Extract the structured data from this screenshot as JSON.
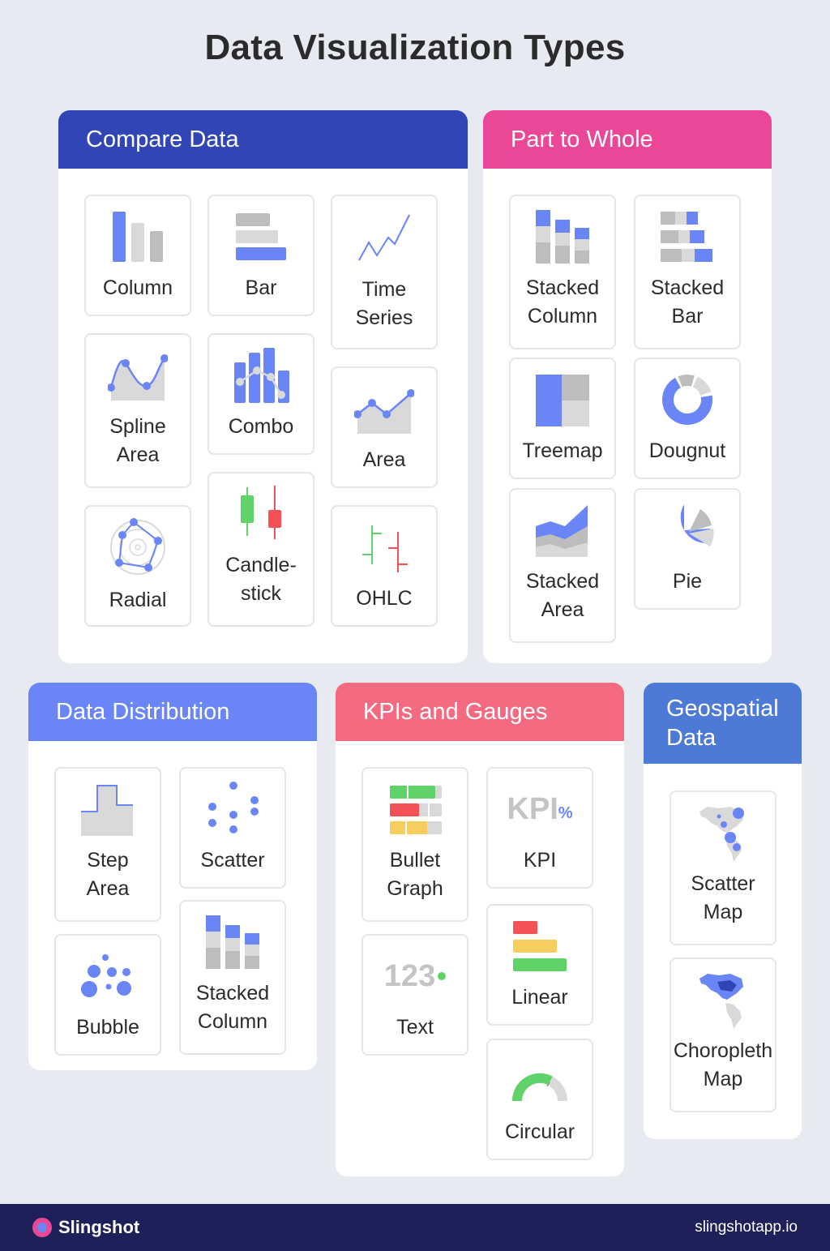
{
  "title": "Data Visualization Types",
  "colors": {
    "background": "#e8eaf2",
    "compare": "#3146b4",
    "part_to_whole": "#ea4797",
    "distribution": "#6a85f5",
    "kpis": "#f46a80",
    "geospatial": "#4c7ad6",
    "chart_blue": "#6a85f5",
    "chart_gray": "#bdbdbd",
    "green": "#5fd36a",
    "red": "#f45157",
    "yellow": "#f6cd5e",
    "footer": "#1e2159"
  },
  "sections": {
    "compare": {
      "title": "Compare Data",
      "items": [
        {
          "label": "Column",
          "icon": "column-chart-icon"
        },
        {
          "label": "Bar",
          "icon": "bar-chart-icon"
        },
        {
          "label": "Time\nSeries",
          "icon": "time-series-icon"
        },
        {
          "label": "Spline\nArea",
          "icon": "spline-area-icon"
        },
        {
          "label": "Combo",
          "icon": "combo-chart-icon"
        },
        {
          "label": "Area",
          "icon": "area-chart-icon"
        },
        {
          "label": "Radial",
          "icon": "radial-chart-icon"
        },
        {
          "label": "Candle-\nstick",
          "icon": "candlestick-icon"
        },
        {
          "label": "OHLC",
          "icon": "ohlc-icon"
        }
      ]
    },
    "part_to_whole": {
      "title": "Part to Whole",
      "items": [
        {
          "label": "Stacked\nColumn",
          "icon": "stacked-column-icon"
        },
        {
          "label": "Stacked\nBar",
          "icon": "stacked-bar-icon"
        },
        {
          "label": "Treemap",
          "icon": "treemap-icon"
        },
        {
          "label": "Dougnut",
          "icon": "doughnut-icon"
        },
        {
          "label": "Stacked\nArea",
          "icon": "stacked-area-icon"
        },
        {
          "label": "Pie",
          "icon": "pie-icon"
        }
      ]
    },
    "distribution": {
      "title": "Data Distribution",
      "items": [
        {
          "label": "Step\nArea",
          "icon": "step-area-icon"
        },
        {
          "label": "Scatter",
          "icon": "scatter-icon"
        },
        {
          "label": "Bubble",
          "icon": "bubble-icon"
        },
        {
          "label": "Stacked\nColumn",
          "icon": "stacked-column-icon"
        }
      ]
    },
    "kpis": {
      "title": "KPIs and Gauges",
      "items": [
        {
          "label": "Bullet\nGraph",
          "icon": "bullet-graph-icon"
        },
        {
          "label": "KPI",
          "icon": "kpi-icon",
          "glyph": "KPI",
          "glyph_sup": "%"
        },
        {
          "label": "Text",
          "icon": "text-value-icon",
          "glyph": "123"
        },
        {
          "label": "Linear",
          "icon": "linear-gauge-icon"
        },
        {
          "label": "Circular",
          "icon": "circular-gauge-icon"
        }
      ]
    },
    "geospatial": {
      "title": "Geospatial\nData",
      "items": [
        {
          "label": "Scatter\nMap",
          "icon": "scatter-map-icon"
        },
        {
          "label": "Choropleth\nMap",
          "icon": "choropleth-map-icon"
        }
      ]
    }
  },
  "footer": {
    "brand": "Slingshot",
    "url": "slingshotapp.io"
  }
}
